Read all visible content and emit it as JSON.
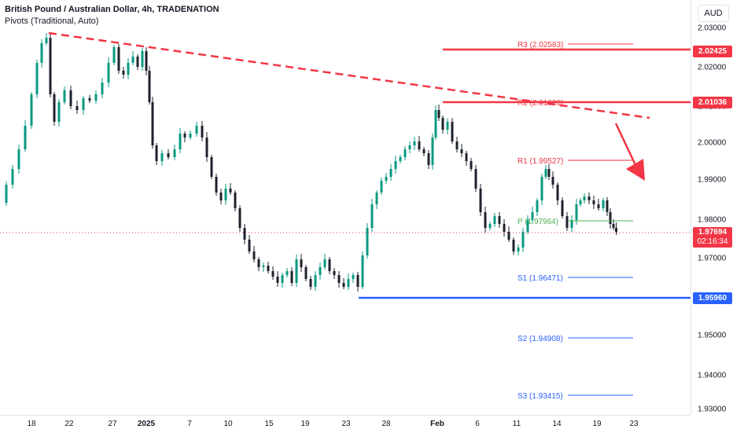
{
  "legend": {
    "title": "British Pound / Australian Dollar, 4h, TRADENATION",
    "indicator": "Pivots (Traditional, Auto)"
  },
  "price_axis": {
    "currency": "AUD",
    "ticks": [
      "2.03000",
      "2.02000",
      "2.01000",
      "2.00000",
      "1.99000",
      "1.98000",
      "1.97000",
      "1.96000",
      "1.95000",
      "1.94000",
      "1.93000"
    ],
    "labels": {
      "upper_resistance": "2.02425",
      "resistance": "2.01036",
      "current": "1.97694",
      "countdown": "02:16:34",
      "support": "1.95960"
    }
  },
  "time_axis": {
    "ticks": [
      "18",
      "22",
      "27",
      "2025",
      "7",
      "10",
      "15",
      "19",
      "23",
      "28",
      "Feb",
      "6",
      "11",
      "14",
      "19",
      "23"
    ]
  },
  "pivots": {
    "R3": "R3 (2.02583)",
    "R2": "R2 (2.01028)",
    "R1": "R1 (1.99527)",
    "P": "P (1.97964)",
    "S1": "S1 (1.96471)",
    "S2": "S2 (1.94908)",
    "S3": "S3 (1.93415)"
  },
  "colors": {
    "up": "#089981",
    "down": "#f23645",
    "candle_body_down": "#1e222d",
    "resistance": "#f23645",
    "support": "#2962ff",
    "pivot_p": "#4caf50",
    "pivot_s": "#2962ff",
    "pivot_r": "#f23645"
  }
}
